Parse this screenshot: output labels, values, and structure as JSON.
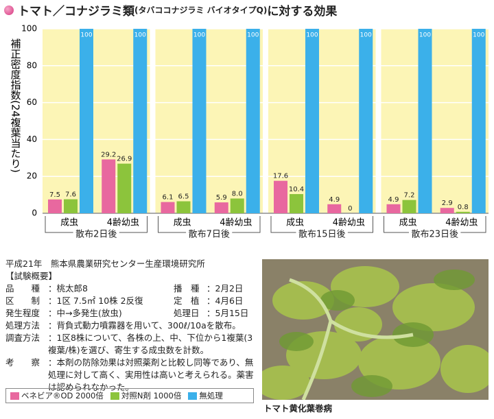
{
  "chart_data": {
    "type": "bar",
    "title": "トマト／コナジラミ類",
    "title_sub": "(タバココナジラミ バイオタイプQ)",
    "title_end": "に対する効果",
    "y_label": "補正密度指数(24複葉当たり)",
    "categories": [
      "成虫",
      "4齢幼虫",
      "成虫",
      "4齢幼虫",
      "成虫",
      "4齢幼虫",
      "成虫",
      "4齢幼虫"
    ],
    "groups": [
      "散布2日後",
      "散布7日後",
      "散布15日後",
      "散布23日後"
    ],
    "series": [
      {
        "name": "ベネビア®OD 2000倍",
        "color": "#e8689f",
        "values": [
          7.5,
          29.2,
          6.1,
          5.9,
          17.6,
          4.9,
          4.9,
          2.9
        ],
        "value_labels": [
          "7.5",
          "29.2",
          "6.1",
          "5.9",
          "17.6",
          "4.9",
          "4.9",
          "2.9"
        ]
      },
      {
        "name": "対照N剤 1000倍",
        "color": "#8cc43c",
        "values": [
          7.6,
          26.9,
          6.5,
          8.0,
          10.4,
          0,
          7.2,
          0.8
        ],
        "value_labels": [
          "7.6",
          "26.9",
          "6.5",
          "8.0",
          "10.4",
          "0",
          "7.2",
          "0.8"
        ]
      },
      {
        "name": "無処理",
        "color": "#3bb0ea",
        "values": [
          100,
          100,
          100,
          100,
          100,
          100,
          100,
          100
        ],
        "value_labels": [
          "100",
          "100",
          "100",
          "100",
          "100",
          "100",
          "100",
          "100"
        ]
      }
    ],
    "ylim": [
      0,
      100
    ],
    "yticks": [
      0,
      20,
      40,
      60,
      80,
      100
    ],
    "grid": true,
    "background": "#fcf5b6"
  },
  "report": {
    "source": "平成21年　熊本県農業研究センター生産環境研究所",
    "heading": "【試験概要】",
    "pairs": [
      [
        {
          "label": "品　　種",
          "value": "：桃太郎8"
        },
        {
          "label": "播　種",
          "value": "：2月2日"
        }
      ],
      [
        {
          "label": "区　　制",
          "value": "：1区 7.5㎡ 10株 2反復"
        },
        {
          "label": "定　植",
          "value": "：4月6日"
        }
      ],
      [
        {
          "label": "発生程度",
          "value": "：中→多発生(放虫)"
        },
        {
          "label": "処理日",
          "value": "：5月15日"
        }
      ]
    ],
    "items": [
      {
        "label": "処理方法",
        "value": "：背負式動力噴霧器を用いて、300ℓ/10aを散布。"
      },
      {
        "label": "調査方法",
        "value": "：1区8株について、各株の上、中、下位から1複葉(3複葉/株)を選び、寄生する成虫数を計数。"
      },
      {
        "label": "考　　察",
        "value": "：本剤の防除効果は対照薬剤と比較し同等であり、無処理に対して高く、実用性は高いと考えられる。薬害は認められなかった。"
      }
    ]
  },
  "photo_caption": "トマト黄化葉巻病"
}
